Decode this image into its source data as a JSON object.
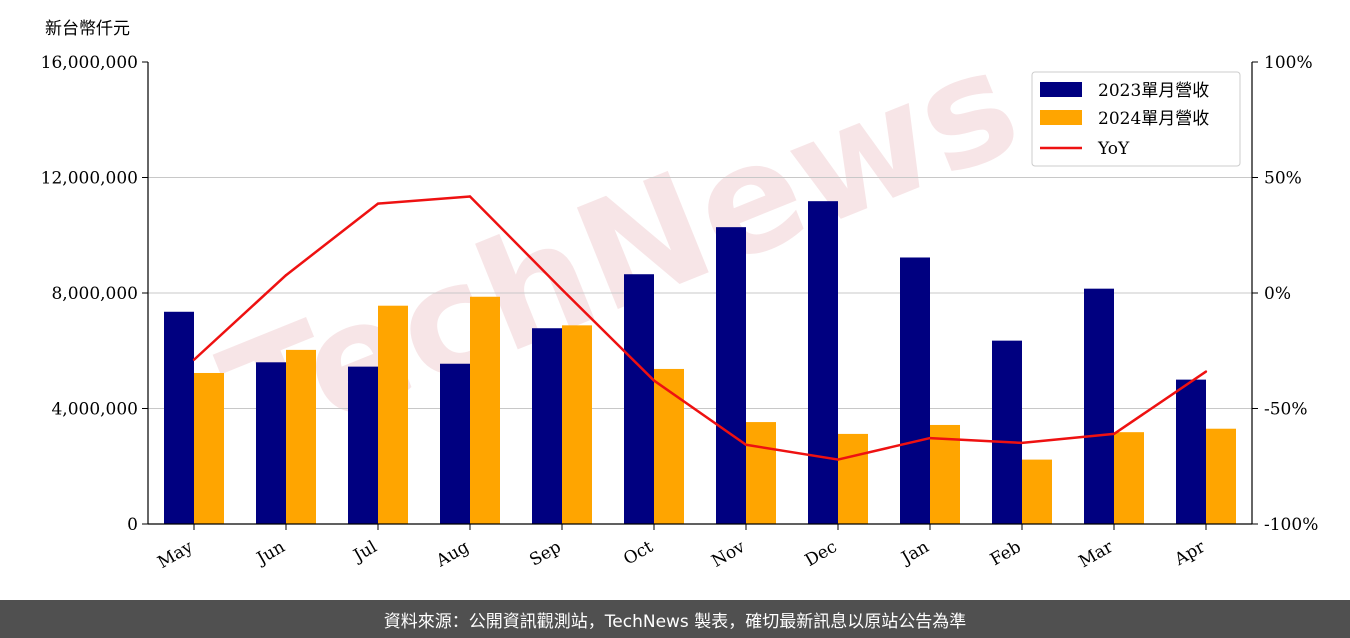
{
  "colors": {
    "series2023": "#000080",
    "series2024": "#ffa500",
    "yoy": "#ee1111",
    "footer_bg": "#505050"
  },
  "watermark": "TechNews",
  "footer": {
    "text": "資料來源：公開資訊觀測站，TechNews 製表，確切最新訊息以原站公告為準"
  },
  "chart_data": {
    "type": "bar",
    "y_unit_label": "新台幣仟元",
    "categories": [
      "May",
      "Jun",
      "Jul",
      "Aug",
      "Sep",
      "Oct",
      "Nov",
      "Dec",
      "Jan",
      "Feb",
      "Mar",
      "Apr"
    ],
    "series": [
      {
        "name": "2023單月營收",
        "type": "bar",
        "axis": "left",
        "values": [
          7350000,
          5600000,
          5450000,
          5550000,
          6780000,
          8650000,
          10280000,
          11180000,
          9230000,
          6350000,
          8150000,
          5000000
        ]
      },
      {
        "name": "2024單月營收",
        "type": "bar",
        "axis": "left",
        "values": [
          5230000,
          6030000,
          7560000,
          7870000,
          6880000,
          5370000,
          3530000,
          3120000,
          3430000,
          2230000,
          3180000,
          3300000
        ]
      },
      {
        "name": "YoY",
        "type": "line",
        "axis": "right",
        "values": [
          -28.9,
          7.7,
          38.7,
          41.8,
          1.5,
          -37.9,
          -65.7,
          -72.1,
          -62.8,
          -64.9,
          -61.0,
          -34.0
        ]
      }
    ],
    "ylim": [
      0,
      16000000
    ],
    "y_ticks": [
      "0",
      "4,000,000",
      "8,000,000",
      "12,000,000",
      "16,000,000"
    ],
    "y2lim": [
      -100,
      100
    ],
    "y2_ticks": [
      "-100%",
      "-50%",
      "0%",
      "50%",
      "100%"
    ],
    "grid": "horizontal",
    "legend": "top-right"
  }
}
